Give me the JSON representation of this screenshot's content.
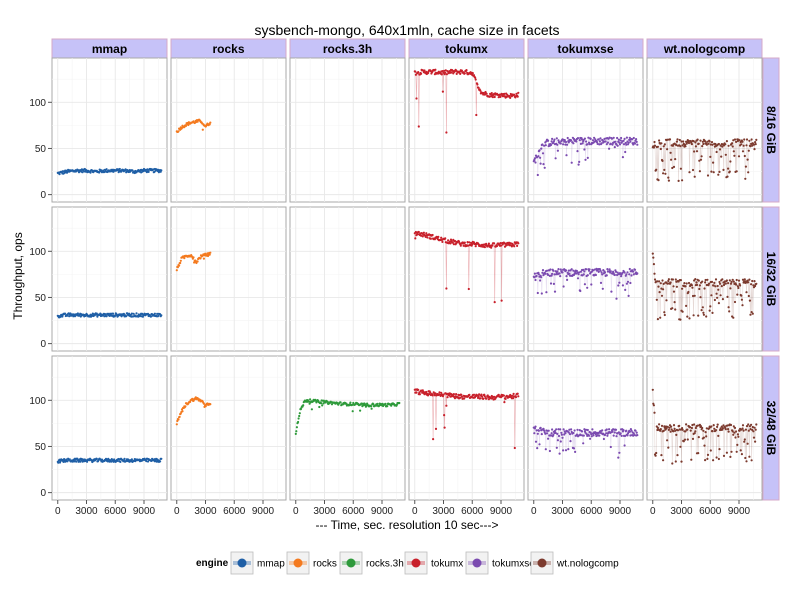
{
  "chart_data": {
    "type": "scatter",
    "title": "sysbench-mongo, 640x1mln, cache size in facets",
    "xlabel": "--- Time, sec. resolution 10 sec--->",
    "ylabel": "Throughput, ops",
    "xlim": [
      -600,
      11400
    ],
    "ylim": [
      -8,
      148
    ],
    "x_ticks": [
      0,
      3000,
      6000,
      9000
    ],
    "x_tick_labels": [
      "0",
      "3000",
      "6000",
      "9000"
    ],
    "y_ticks": [
      0,
      50,
      100
    ],
    "y_tick_labels": [
      "0",
      "50",
      "100"
    ],
    "grid": true,
    "legend_position": "bottom",
    "legend_title": "engine",
    "columns": [
      "mmap",
      "rocks",
      "rocks.3h",
      "tokumx",
      "tokumxse",
      "wt.nologcomp"
    ],
    "rows": [
      "8/16 GiB",
      "16/32 GiB",
      "32/48 GiB"
    ],
    "colors": {
      "mmap": "#1f5fa6",
      "rocks": "#f47a1f",
      "rocks.3h": "#2e9a3b",
      "tokumx": "#c8202b",
      "tokumxse": "#7b4bb0",
      "wt.nologcomp": "#7c3a2e"
    },
    "series": [
      {
        "engine": "mmap",
        "row": "8/16 GiB",
        "x": [
          0,
          1000,
          2000,
          3000,
          4000,
          5000,
          6000,
          7000,
          8000,
          9000,
          10000,
          10800
        ],
        "y": [
          23,
          25,
          26,
          26,
          25,
          26,
          26,
          26,
          25,
          26,
          26,
          26
        ]
      },
      {
        "engine": "rocks",
        "row": "8/16 GiB",
        "x": [
          0,
          500,
          1000,
          1500,
          2000,
          2500,
          3000,
          3500
        ],
        "y": [
          68,
          73,
          76,
          78,
          79,
          80,
          74,
          78
        ]
      },
      {
        "engine": "tokumx",
        "row": "8/16 GiB",
        "x": [
          0,
          1000,
          2000,
          3000,
          4000,
          5000,
          6000,
          6500,
          7000,
          8000,
          9000,
          10000,
          10800
        ],
        "y": [
          132,
          133,
          133,
          132,
          133,
          133,
          132,
          120,
          110,
          108,
          108,
          107,
          108
        ]
      },
      {
        "engine": "tokumxse",
        "row": "8/16 GiB",
        "x": [
          0,
          1000,
          2000,
          3000,
          4000,
          5000,
          6000,
          7000,
          8000,
          9000,
          10000,
          10800
        ],
        "y": [
          35,
          55,
          57,
          58,
          58,
          58,
          58,
          58,
          58,
          58,
          58,
          58
        ]
      },
      {
        "engine": "wt.nologcomp",
        "row": "8/16 GiB",
        "x": [
          0,
          1000,
          2000,
          3000,
          4000,
          5000,
          6000,
          7000,
          8000,
          9000,
          10000,
          10800
        ],
        "y": [
          55,
          56,
          56,
          56,
          56,
          56,
          56,
          56,
          56,
          56,
          56,
          56
        ]
      },
      {
        "engine": "mmap",
        "row": "16/32 GiB",
        "x": [
          0,
          1000,
          2000,
          3000,
          4000,
          5000,
          6000,
          7000,
          8000,
          9000,
          10000,
          10800
        ],
        "y": [
          30,
          31,
          31,
          31,
          31,
          31,
          31,
          31,
          31,
          31,
          31,
          31
        ]
      },
      {
        "engine": "rocks",
        "row": "16/32 GiB",
        "x": [
          0,
          500,
          1000,
          1500,
          2000,
          2500,
          3000,
          3500
        ],
        "y": [
          80,
          92,
          95,
          96,
          88,
          94,
          96,
          97
        ]
      },
      {
        "engine": "tokumx",
        "row": "16/32 GiB",
        "x": [
          0,
          1000,
          2000,
          3000,
          4000,
          5000,
          6000,
          7000,
          8000,
          9000,
          10000,
          10800
        ],
        "y": [
          120,
          118,
          115,
          112,
          110,
          108,
          108,
          107,
          106,
          107,
          107,
          108
        ]
      },
      {
        "engine": "tokumxse",
        "row": "16/32 GiB",
        "x": [
          0,
          1000,
          2000,
          3000,
          4000,
          5000,
          6000,
          7000,
          8000,
          9000,
          10000,
          10800
        ],
        "y": [
          72,
          76,
          77,
          77,
          77,
          77,
          77,
          77,
          77,
          77,
          77,
          77
        ]
      },
      {
        "engine": "wt.nologcomp",
        "row": "16/32 GiB",
        "x": [
          0,
          300,
          1000,
          2000,
          3000,
          4000,
          5000,
          6000,
          7000,
          8000,
          9000,
          10000,
          10800
        ],
        "y": [
          100,
          65,
          66,
          66,
          66,
          66,
          66,
          66,
          66,
          66,
          66,
          66,
          66
        ]
      },
      {
        "engine": "mmap",
        "row": "32/48 GiB",
        "x": [
          0,
          1000,
          2000,
          3000,
          4000,
          5000,
          6000,
          7000,
          8000,
          9000,
          10000,
          10800
        ],
        "y": [
          34,
          35,
          35,
          35,
          35,
          35,
          35,
          35,
          35,
          35,
          35,
          35
        ]
      },
      {
        "engine": "rocks",
        "row": "32/48 GiB",
        "x": [
          0,
          500,
          1000,
          1500,
          2000,
          2500,
          3000,
          3500
        ],
        "y": [
          75,
          88,
          96,
          100,
          102,
          100,
          95,
          97
        ]
      },
      {
        "engine": "rocks.3h",
        "row": "32/48 GiB",
        "x": [
          0,
          500,
          1000,
          2000,
          3000,
          4000,
          5000,
          6000,
          7000,
          8000,
          9000,
          10000,
          10800
        ],
        "y": [
          65,
          90,
          100,
          99,
          98,
          97,
          96,
          96,
          95,
          95,
          95,
          95,
          96
        ]
      },
      {
        "engine": "tokumx",
        "row": "32/48 GiB",
        "x": [
          0,
          1000,
          2000,
          3000,
          4000,
          5000,
          6000,
          7000,
          8000,
          9000,
          10000,
          10800
        ],
        "y": [
          110,
          108,
          107,
          106,
          105,
          104,
          104,
          104,
          103,
          104,
          104,
          105
        ]
      },
      {
        "engine": "tokumxse",
        "row": "32/48 GiB",
        "x": [
          0,
          1000,
          2000,
          3000,
          4000,
          5000,
          6000,
          7000,
          8000,
          9000,
          10000,
          10800
        ],
        "y": [
          68,
          66,
          65,
          65,
          65,
          65,
          65,
          65,
          65,
          65,
          65,
          66
        ]
      },
      {
        "engine": "wt.nologcomp",
        "row": "32/48 GiB",
        "x": [
          0,
          300,
          1000,
          2000,
          3000,
          4000,
          5000,
          6000,
          7000,
          8000,
          9000,
          10000,
          10800
        ],
        "y": [
          110,
          70,
          70,
          70,
          70,
          70,
          70,
          70,
          70,
          70,
          70,
          70,
          70
        ]
      }
    ]
  }
}
